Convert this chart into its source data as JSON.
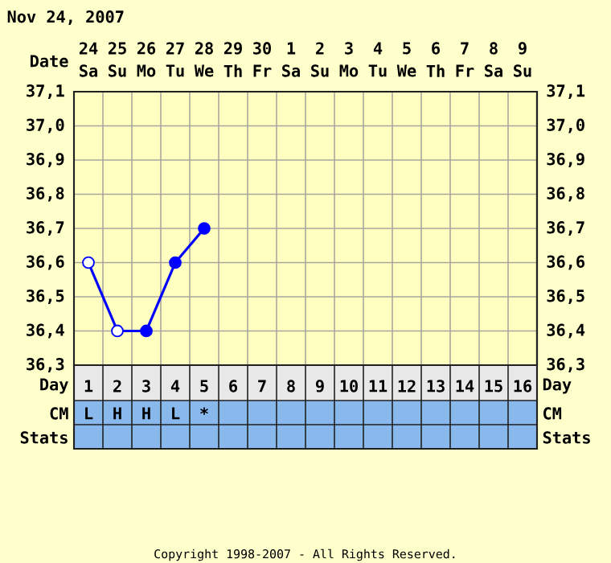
{
  "chart_data": {
    "type": "line",
    "title": "Nov 24, 2007",
    "x": [
      1,
      2,
      3,
      4,
      5
    ],
    "series": [
      {
        "color": "#0000ff",
        "values": [
          36.6,
          36.4,
          36.4,
          36.6,
          36.7
        ],
        "colors": [
          "#ffffff",
          "#ffffff",
          "#0000ff",
          "#0000ff",
          "#0000ff"
        ]
      }
    ],
    "marker": "circle",
    "grid": true,
    "xlim": [
      0.5,
      16.5
    ],
    "xticks": [
      1,
      2,
      3,
      4,
      5,
      6,
      7,
      8,
      9,
      10,
      11,
      12,
      13,
      14,
      15,
      16
    ],
    "x2lim": [
      "2007-11-23T12:00",
      "2007-12-09T12:00"
    ],
    "x2ticks": [
      {
        "value": "2007-11-24",
        "label": "24"
      },
      {
        "value": "2007-11-25",
        "label": "25"
      },
      {
        "value": "2007-11-26",
        "label": "26"
      },
      {
        "value": "2007-11-27",
        "label": "27"
      },
      {
        "value": "2007-11-28",
        "label": "28"
      },
      {
        "value": "2007-11-29",
        "label": "29"
      },
      {
        "value": "2007-11-30",
        "label": "30"
      },
      {
        "value": "2007-12-01",
        "label": "1"
      },
      {
        "value": "2007-12-02",
        "label": "2"
      },
      {
        "value": "2007-12-03",
        "label": "3"
      },
      {
        "value": "2007-12-04",
        "label": "4"
      },
      {
        "value": "2007-12-05",
        "label": "5"
      },
      {
        "value": "2007-12-06",
        "label": "6"
      },
      {
        "value": "2007-12-07",
        "label": "7"
      },
      {
        "value": "2007-12-08",
        "label": "8"
      },
      {
        "value": "2007-12-09",
        "label": "9"
      }
    ],
    "ylim": [
      36.3,
      37.1
    ],
    "yticks": [
      {
        "value": 36.3,
        "label": "36,3"
      },
      {
        "value": 36.4,
        "label": "36,4"
      },
      {
        "value": 36.5,
        "label": "36,5"
      },
      {
        "value": 36.6,
        "label": "36,6"
      },
      {
        "value": 36.7,
        "label": "36,7"
      },
      {
        "value": 36.8,
        "label": "36,8"
      },
      {
        "value": 36.9,
        "label": "36,9"
      },
      {
        "value": 37.0,
        "label": "37,0"
      },
      {
        "value": 37.1,
        "label": "37,1"
      }
    ],
    "y2lim": [
      36.3,
      37.1
    ],
    "y2ticks": [
      {
        "value": 36.3,
        "label": "36,3"
      },
      {
        "value": 36.4,
        "label": "36,4"
      },
      {
        "value": 36.5,
        "label": "36,5"
      },
      {
        "value": 36.6,
        "label": "36,6"
      },
      {
        "value": 36.7,
        "label": "36,7"
      },
      {
        "value": 36.8,
        "label": "36,8"
      },
      {
        "value": 36.9,
        "label": "36,9"
      },
      {
        "value": 37.0,
        "label": "37,0"
      },
      {
        "value": 37.1,
        "label": "37,1"
      }
    ],
    "annotations": [
      "Date",
      "Day",
      "Day",
      "CM",
      "CM",
      "Stats",
      "Stats",
      "Copyright 1998-2007 - All Rights Reserved.",
      "Sa",
      "Su",
      "Mo",
      "Tu",
      "We",
      "Th",
      "Fr",
      "Sa",
      "Su",
      "Mo",
      "Tu",
      "We",
      "Th",
      "Fr",
      "Sa",
      "Su",
      "L",
      "H",
      "H",
      "L",
      "*"
    ]
  }
}
